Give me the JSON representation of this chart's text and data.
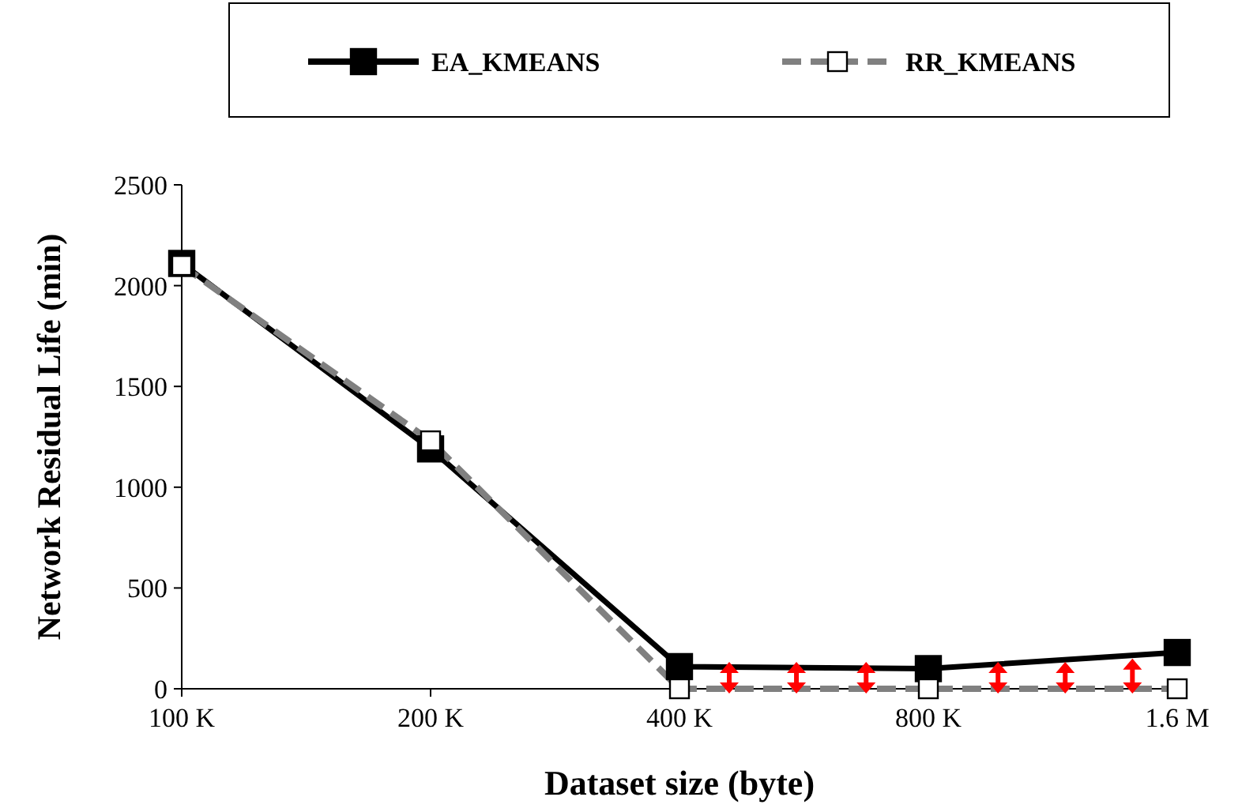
{
  "chart_data": {
    "type": "line",
    "xlabel": "Dataset size (byte)",
    "ylabel": "Network Residual Life (min)",
    "categories": [
      "100 K",
      "200 K",
      "400 K",
      "800 K",
      "1.6 M"
    ],
    "series": [
      {
        "name": "EA_KMEANS",
        "color": "#000000",
        "values": [
          2110,
          1190,
          110,
          100,
          180
        ],
        "marker": "square",
        "line_style": "solid"
      },
      {
        "name": "RR_KMEANS",
        "color": "#808080",
        "values": [
          2100,
          1230,
          0,
          0,
          0
        ],
        "marker": "square",
        "line_style": "dashed"
      }
    ],
    "ylim": [
      0,
      2500
    ],
    "yticks": [
      0,
      500,
      1000,
      1500,
      2000,
      2500
    ],
    "grid": false,
    "legend": "top"
  }
}
